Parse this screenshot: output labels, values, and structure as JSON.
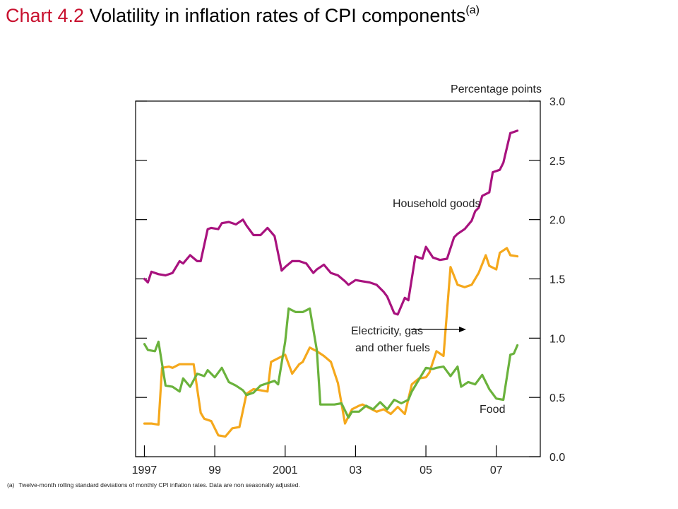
{
  "title": {
    "number": "Chart 4.2",
    "text": "Volatility in inflation rates of CPI components",
    "superscript": "(a)"
  },
  "footnote": {
    "marker": "(a)",
    "text": "Twelve-month rolling standard deviations of monthly CPI inflation rates.  Data are non seasonally adjusted."
  },
  "chart_data": {
    "type": "line",
    "ylabel": "Percentage points",
    "ylim": [
      0.0,
      3.0
    ],
    "yticks": [
      "0.0",
      "0.5",
      "1.0",
      "1.5",
      "2.0",
      "2.5",
      "3.0"
    ],
    "xlim": [
      1996.75,
      2008.25
    ],
    "xtick_values": [
      1997,
      1999,
      2001,
      2003,
      2005,
      2007
    ],
    "xtick_labels": [
      "1997",
      "99",
      "2001",
      "03",
      "05",
      "07"
    ],
    "grid": false,
    "axis_side": "right",
    "series": [
      {
        "name": "Household goods",
        "color": "#a8127e",
        "x": [
          1997.0,
          1997.1,
          1997.2,
          1997.4,
          1997.6,
          1997.8,
          1998.0,
          1998.1,
          1998.3,
          1998.5,
          1998.6,
          1998.8,
          1998.9,
          1999.1,
          1999.2,
          1999.4,
          1999.6,
          1999.8,
          1999.9,
          2000.1,
          2000.3,
          2000.5,
          2000.7,
          2000.9,
          2001.0,
          2001.2,
          2001.4,
          2001.6,
          2001.8,
          2001.9,
          2002.1,
          2002.3,
          2002.5,
          2002.7,
          2002.8,
          2003.0,
          2003.2,
          2003.4,
          2003.6,
          2003.8,
          2003.9,
          2004.1,
          2004.2,
          2004.4,
          2004.5,
          2004.7,
          2004.9,
          2005.0,
          2005.2,
          2005.4,
          2005.6,
          2005.8,
          2005.9,
          2006.1,
          2006.3,
          2006.4,
          2006.5,
          2006.6,
          2006.8,
          2006.9,
          2007.1,
          2007.2,
          2007.4,
          2007.5,
          2007.6
        ],
        "values": [
          1.5,
          1.47,
          1.56,
          1.54,
          1.53,
          1.55,
          1.65,
          1.63,
          1.7,
          1.65,
          1.65,
          1.92,
          1.93,
          1.92,
          1.97,
          1.98,
          1.96,
          2.0,
          1.95,
          1.87,
          1.87,
          1.93,
          1.86,
          1.57,
          1.6,
          1.65,
          1.65,
          1.63,
          1.55,
          1.58,
          1.62,
          1.55,
          1.53,
          1.48,
          1.45,
          1.49,
          1.48,
          1.47,
          1.45,
          1.39,
          1.35,
          1.21,
          1.2,
          1.34,
          1.32,
          1.69,
          1.67,
          1.77,
          1.68,
          1.66,
          1.67,
          1.85,
          1.88,
          1.92,
          1.99,
          2.07,
          2.1,
          2.2,
          2.23,
          2.4,
          2.42,
          2.48,
          2.73,
          2.74,
          2.75
        ]
      },
      {
        "name": "Electricity, gas and other fuels",
        "color": "#f5a81c",
        "x": [
          1997.0,
          1997.2,
          1997.4,
          1997.5,
          1997.7,
          1997.8,
          1998.0,
          1998.2,
          1998.4,
          1998.6,
          1998.7,
          1998.9,
          1999.1,
          1999.3,
          1999.5,
          1999.7,
          1999.9,
          2000.1,
          2000.3,
          2000.5,
          2000.6,
          2000.8,
          2001.0,
          2001.2,
          2001.4,
          2001.5,
          2001.7,
          2001.9,
          2002.1,
          2002.3,
          2002.5,
          2002.7,
          2002.9,
          2003.1,
          2003.2,
          2003.4,
          2003.6,
          2003.8,
          2004.0,
          2004.2,
          2004.4,
          2004.6,
          2004.8,
          2005.0,
          2005.1,
          2005.3,
          2005.5,
          2005.7,
          2005.9,
          2006.1,
          2006.3,
          2006.5,
          2006.7,
          2006.8,
          2007.0,
          2007.1,
          2007.3,
          2007.4,
          2007.6
        ],
        "values": [
          0.28,
          0.28,
          0.27,
          0.75,
          0.76,
          0.75,
          0.78,
          0.78,
          0.78,
          0.37,
          0.32,
          0.3,
          0.18,
          0.17,
          0.24,
          0.25,
          0.53,
          0.57,
          0.56,
          0.55,
          0.8,
          0.83,
          0.86,
          0.7,
          0.78,
          0.8,
          0.92,
          0.89,
          0.85,
          0.8,
          0.62,
          0.28,
          0.4,
          0.43,
          0.44,
          0.41,
          0.38,
          0.4,
          0.36,
          0.42,
          0.36,
          0.61,
          0.66,
          0.67,
          0.71,
          0.89,
          0.85,
          1.6,
          1.45,
          1.43,
          1.45,
          1.55,
          1.7,
          1.61,
          1.58,
          1.72,
          1.76,
          1.7,
          1.69
        ]
      },
      {
        "name": "Food",
        "color": "#6ab23c",
        "x": [
          1997.0,
          1997.1,
          1997.3,
          1997.4,
          1997.6,
          1997.8,
          1998.0,
          1998.1,
          1998.3,
          1998.5,
          1998.7,
          1998.8,
          1999.0,
          1999.2,
          1999.4,
          1999.6,
          1999.8,
          1999.9,
          2000.1,
          2000.3,
          2000.5,
          2000.7,
          2000.8,
          2001.0,
          2001.1,
          2001.3,
          2001.5,
          2001.7,
          2001.9,
          2002.0,
          2002.2,
          2002.4,
          2002.6,
          2002.8,
          2002.9,
          2003.1,
          2003.3,
          2003.5,
          2003.7,
          2003.9,
          2004.1,
          2004.3,
          2004.5,
          2004.6,
          2004.8,
          2005.0,
          2005.2,
          2005.3,
          2005.5,
          2005.7,
          2005.9,
          2006.0,
          2006.2,
          2006.4,
          2006.6,
          2006.8,
          2007.0,
          2007.2,
          2007.4,
          2007.5,
          2007.6
        ],
        "values": [
          0.95,
          0.9,
          0.89,
          0.97,
          0.6,
          0.59,
          0.55,
          0.66,
          0.59,
          0.7,
          0.68,
          0.73,
          0.67,
          0.75,
          0.63,
          0.6,
          0.56,
          0.52,
          0.54,
          0.6,
          0.62,
          0.64,
          0.61,
          0.97,
          1.25,
          1.22,
          1.22,
          1.25,
          0.9,
          0.44,
          0.44,
          0.44,
          0.45,
          0.33,
          0.38,
          0.38,
          0.43,
          0.4,
          0.46,
          0.4,
          0.48,
          0.45,
          0.48,
          0.55,
          0.65,
          0.75,
          0.74,
          0.75,
          0.76,
          0.68,
          0.76,
          0.59,
          0.63,
          0.61,
          0.69,
          0.57,
          0.49,
          0.48,
          0.86,
          0.87,
          0.94
        ]
      }
    ],
    "annotations": [
      {
        "text": "Household goods",
        "series": "Household goods"
      },
      {
        "lines": [
          "Electricity, gas",
          "and other fuels"
        ],
        "series": "Electricity, gas and other fuels",
        "arrow": "right"
      },
      {
        "text": "Food",
        "series": "Food"
      }
    ]
  }
}
